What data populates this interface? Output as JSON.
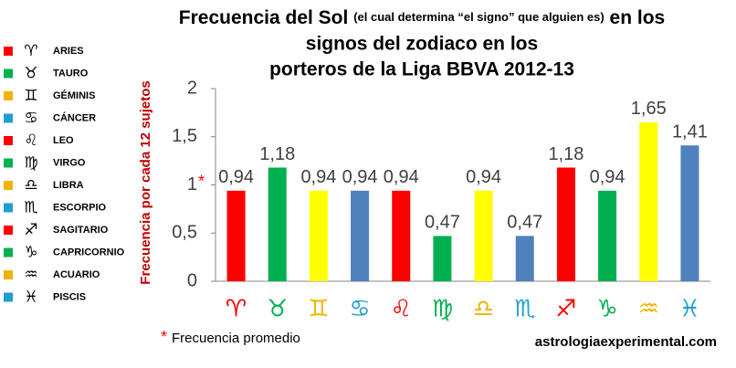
{
  "chart_data": {
    "type": "bar",
    "title": [
      "Frecuencia del Sol",
      "(el cual determina “el signo” que alguien es)",
      "en los",
      "signos del zodiaco en los",
      "porteros de la Liga BBVA 2012-13"
    ],
    "ylabel": "Frecuencia por cada 12 sujetos",
    "categories": [
      "♈",
      "♉",
      "♊",
      "♋",
      "♌",
      "♍",
      "♎",
      "♏",
      "♐",
      "♑",
      "♒",
      "♓"
    ],
    "legend_names": [
      "ARIES",
      "TAURO",
      "GÉMINIS",
      "CÁNCER",
      "LEO",
      "VIRGO",
      "LIBRA",
      "ESCORPIO",
      "SAGITARIO",
      "CAPRICORNIO",
      "ACUARIO",
      "PISCIS"
    ],
    "values": [
      0.94,
      1.18,
      0.94,
      0.94,
      0.94,
      0.47,
      0.94,
      0.47,
      1.18,
      0.94,
      1.65,
      1.41
    ],
    "value_labels": [
      "0,94",
      "1,18",
      "0,94",
      "0,94",
      "0,94",
      "0,47",
      "0,94",
      "0,47",
      "1,18",
      "0,94",
      "1,65",
      "1,41"
    ],
    "colors": [
      "#ff0000",
      "#00b050",
      "#ffff00",
      "#4f81bd",
      "#ff0000",
      "#00b050",
      "#ffff00",
      "#4f81bd",
      "#ff0000",
      "#00b050",
      "#ffff00",
      "#4f81bd"
    ],
    "label_colors": [
      "#ff0000",
      "#00b050",
      "#f0b400",
      "#1f9fd0",
      "#ff0000",
      "#00b050",
      "#f0b400",
      "#1f9fd0",
      "#ff0000",
      "#00b050",
      "#f0b400",
      "#1f9fd0"
    ],
    "ylim": [
      0,
      2
    ],
    "yticks": [
      0,
      {
        "value": 0.5,
        "label": "0,5"
      },
      1,
      {
        "value": 1.5,
        "label": "1,5"
      },
      2
    ],
    "footnote": {
      "marker": "*",
      "text": "Frecuencia promedio"
    },
    "source": "astrologiaexperimental.com"
  }
}
